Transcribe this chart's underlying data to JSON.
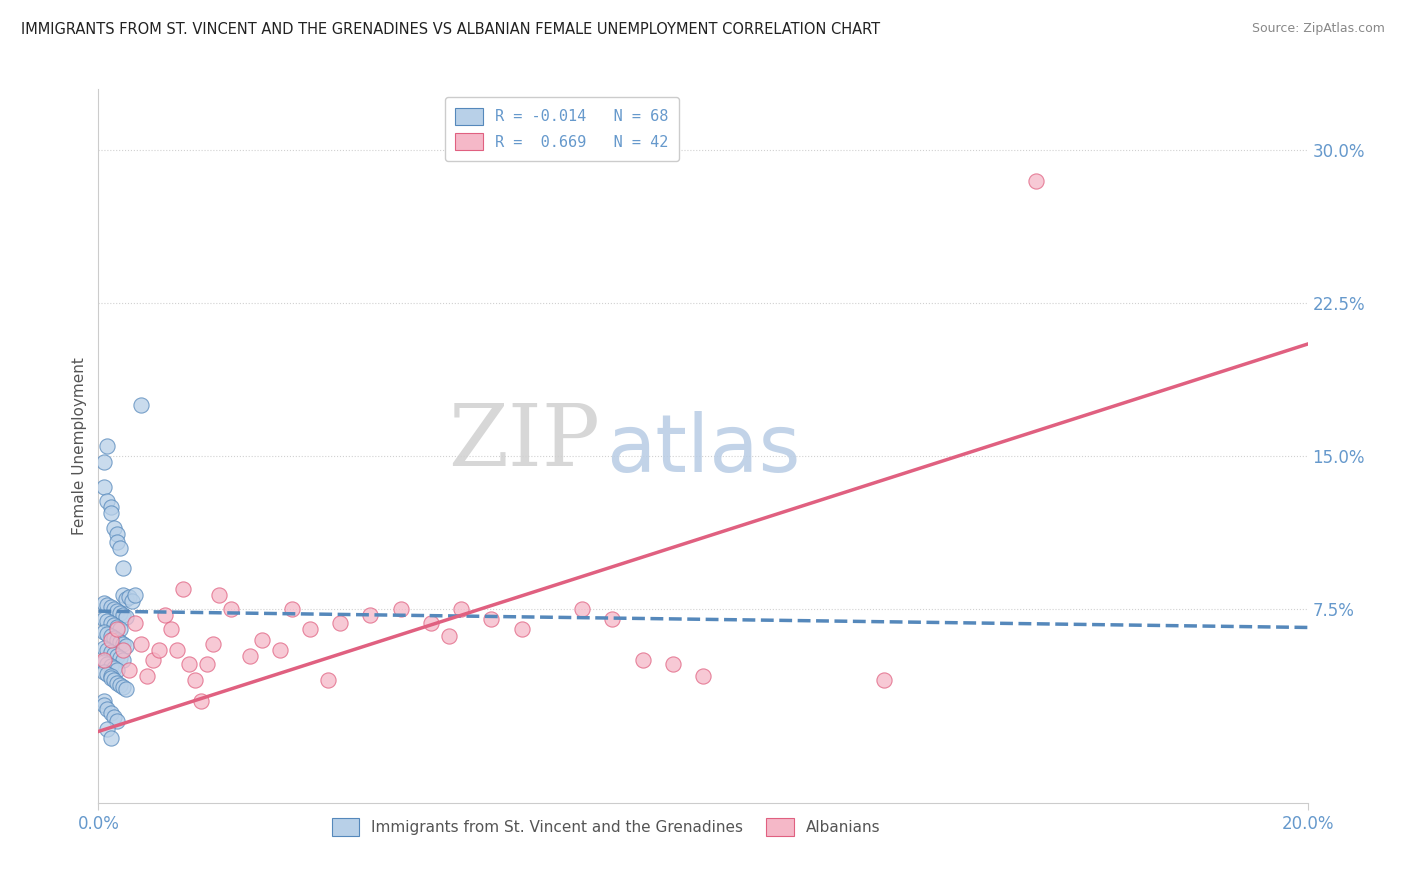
{
  "title": "IMMIGRANTS FROM ST. VINCENT AND THE GRENADINES VS ALBANIAN FEMALE UNEMPLOYMENT CORRELATION CHART",
  "source": "Source: ZipAtlas.com",
  "ylabel": "Female Unemployment",
  "xlim": [
    0.0,
    0.2
  ],
  "ylim": [
    -0.02,
    0.33
  ],
  "yticks": [
    0.075,
    0.15,
    0.225,
    0.3
  ],
  "ytick_labels": [
    "7.5%",
    "15.0%",
    "22.5%",
    "30.0%"
  ],
  "xticks": [
    0.0,
    0.2
  ],
  "xtick_labels": [
    "0.0%",
    "20.0%"
  ],
  "watermark_zip": "ZIP",
  "watermark_atlas": "atlas",
  "legend_line1": "R = -0.014   N = 68",
  "legend_line2": "R =  0.669   N = 42",
  "color_blue_fill": "#b8d0e8",
  "color_blue_edge": "#5588bb",
  "color_pink_fill": "#f5b8c8",
  "color_pink_edge": "#e06080",
  "line_blue_color": "#5588bb",
  "line_pink_color": "#e06080",
  "tick_color": "#6699cc",
  "blue_trend_x": [
    0.0,
    0.2
  ],
  "blue_trend_y": [
    0.074,
    0.066
  ],
  "pink_trend_x": [
    0.0,
    0.2
  ],
  "pink_trend_y": [
    0.015,
    0.205
  ],
  "scatter_blue_x": [
    0.0015,
    0.001,
    0.001,
    0.0015,
    0.002,
    0.002,
    0.0025,
    0.003,
    0.003,
    0.0035,
    0.004,
    0.004,
    0.0045,
    0.005,
    0.0055,
    0.006,
    0.001,
    0.0015,
    0.002,
    0.0025,
    0.003,
    0.0035,
    0.004,
    0.0045,
    0.001,
    0.0015,
    0.002,
    0.0025,
    0.003,
    0.0035,
    0.001,
    0.0015,
    0.002,
    0.0025,
    0.003,
    0.0035,
    0.004,
    0.0045,
    0.001,
    0.0015,
    0.002,
    0.0025,
    0.003,
    0.0035,
    0.004,
    0.001,
    0.0015,
    0.002,
    0.0025,
    0.003,
    0.001,
    0.0015,
    0.002,
    0.002,
    0.0025,
    0.003,
    0.0035,
    0.004,
    0.0045,
    0.007,
    0.001,
    0.001,
    0.0015,
    0.002,
    0.0025,
    0.003,
    0.0015,
    0.002
  ],
  "scatter_blue_y": [
    0.155,
    0.147,
    0.135,
    0.128,
    0.125,
    0.122,
    0.115,
    0.112,
    0.108,
    0.105,
    0.095,
    0.082,
    0.08,
    0.081,
    0.079,
    0.082,
    0.078,
    0.077,
    0.076,
    0.075,
    0.074,
    0.073,
    0.072,
    0.071,
    0.07,
    0.069,
    0.068,
    0.067,
    0.066,
    0.065,
    0.064,
    0.063,
    0.062,
    0.061,
    0.06,
    0.059,
    0.058,
    0.057,
    0.056,
    0.055,
    0.054,
    0.053,
    0.052,
    0.051,
    0.05,
    0.049,
    0.048,
    0.047,
    0.046,
    0.045,
    0.044,
    0.043,
    0.042,
    0.041,
    0.04,
    0.039,
    0.038,
    0.037,
    0.036,
    0.175,
    0.03,
    0.028,
    0.026,
    0.024,
    0.022,
    0.02,
    0.016,
    0.012
  ],
  "scatter_pink_x": [
    0.001,
    0.002,
    0.003,
    0.004,
    0.005,
    0.006,
    0.007,
    0.008,
    0.009,
    0.01,
    0.011,
    0.012,
    0.013,
    0.014,
    0.015,
    0.016,
    0.017,
    0.018,
    0.019,
    0.02,
    0.022,
    0.025,
    0.027,
    0.03,
    0.032,
    0.035,
    0.038,
    0.04,
    0.045,
    0.05,
    0.055,
    0.058,
    0.06,
    0.065,
    0.07,
    0.08,
    0.085,
    0.09,
    0.095,
    0.1,
    0.13,
    0.155
  ],
  "scatter_pink_y": [
    0.05,
    0.06,
    0.065,
    0.055,
    0.045,
    0.068,
    0.058,
    0.042,
    0.05,
    0.055,
    0.072,
    0.065,
    0.055,
    0.085,
    0.048,
    0.04,
    0.03,
    0.048,
    0.058,
    0.082,
    0.075,
    0.052,
    0.06,
    0.055,
    0.075,
    0.065,
    0.04,
    0.068,
    0.072,
    0.075,
    0.068,
    0.062,
    0.075,
    0.07,
    0.065,
    0.075,
    0.07,
    0.05,
    0.048,
    0.042,
    0.04,
    0.285
  ]
}
